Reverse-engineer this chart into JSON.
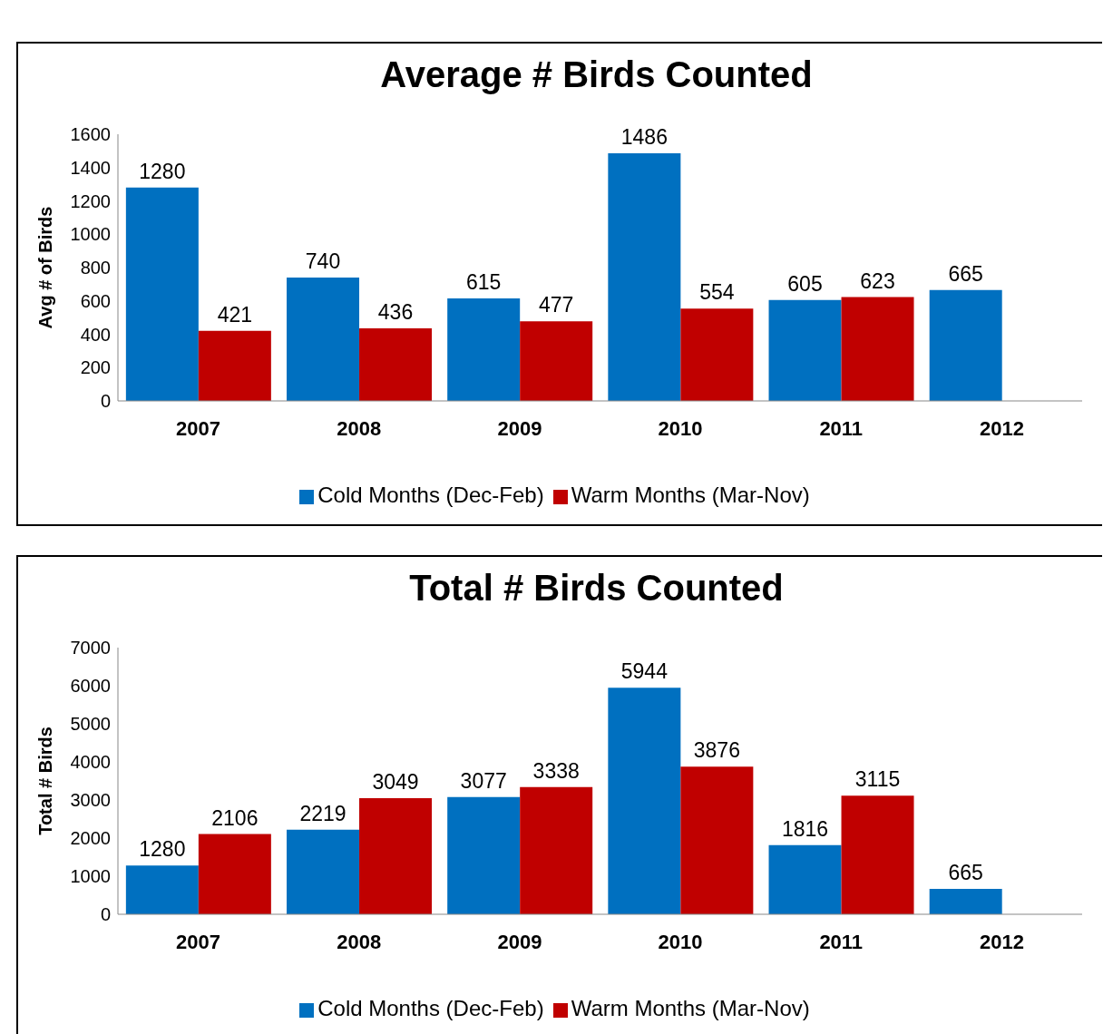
{
  "chart_data": [
    {
      "type": "bar",
      "title": "Average # Birds Counted",
      "ylabel": "Avg # of Birds",
      "categories": [
        "2007",
        "2008",
        "2009",
        "2010",
        "2011",
        "2012"
      ],
      "series": [
        {
          "name": "Cold Months (Dec-Feb)",
          "color": "#0070c0",
          "values": [
            1280,
            740,
            615,
            1486,
            605,
            665
          ]
        },
        {
          "name": "Warm Months (Mar-Nov)",
          "color": "#c00000",
          "values": [
            421,
            436,
            477,
            554,
            623,
            null
          ]
        }
      ],
      "ylim": [
        0,
        1600
      ],
      "yticks": [
        0,
        200,
        400,
        600,
        800,
        1000,
        1200,
        1400,
        1600
      ],
      "grid": false,
      "legend": "bottom",
      "data_labels": true
    },
    {
      "type": "bar",
      "title": "Total # Birds Counted",
      "ylabel": "Total # Birds",
      "categories": [
        "2007",
        "2008",
        "2009",
        "2010",
        "2011",
        "2012"
      ],
      "series": [
        {
          "name": "Cold Months (Dec-Feb)",
          "color": "#0070c0",
          "values": [
            1280,
            2219,
            3077,
            5944,
            1816,
            665
          ]
        },
        {
          "name": "Warm Months (Mar-Nov)",
          "color": "#c00000",
          "values": [
            2106,
            3049,
            3338,
            3876,
            3115,
            null
          ]
        }
      ],
      "ylim": [
        0,
        7000
      ],
      "yticks": [
        0,
        1000,
        2000,
        3000,
        4000,
        5000,
        6000,
        7000
      ],
      "grid": false,
      "legend": "bottom",
      "data_labels": true
    }
  ]
}
